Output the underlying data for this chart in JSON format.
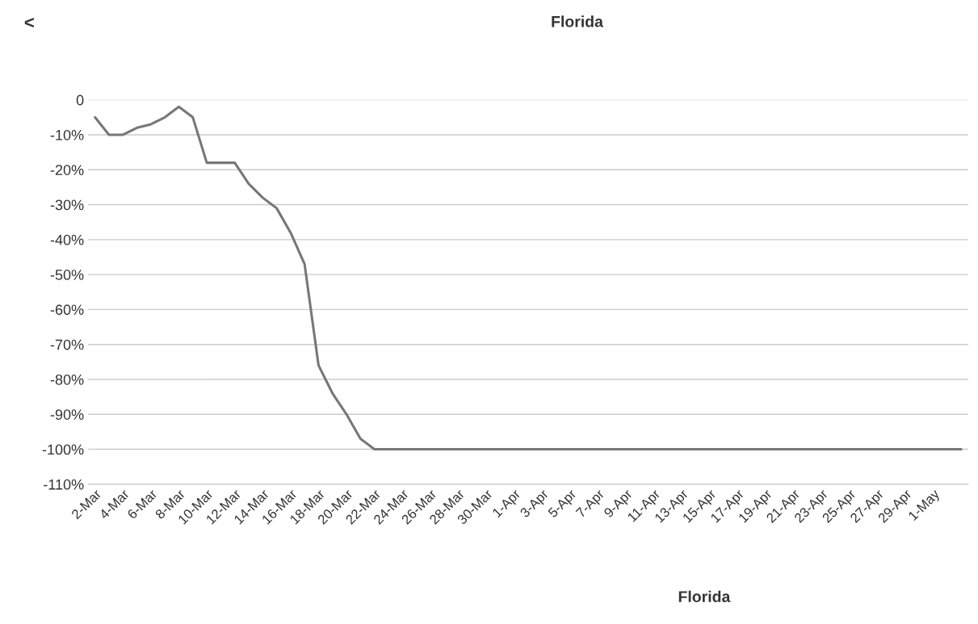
{
  "chart_data": {
    "type": "line",
    "title": "Florida",
    "categories": [
      "2-Mar",
      null,
      "4-Mar",
      null,
      "6-Mar",
      null,
      "8-Mar",
      null,
      "10-Mar",
      null,
      "12-Mar",
      null,
      "14-Mar",
      null,
      "16-Mar",
      null,
      "18-Mar",
      null,
      "20-Mar",
      null,
      "22-Mar",
      null,
      "24-Mar",
      null,
      "26-Mar",
      null,
      "28-Mar",
      null,
      "30-Mar",
      null,
      "1-Apr",
      null,
      "3-Apr",
      null,
      "5-Apr",
      null,
      "7-Apr",
      null,
      "9-Apr",
      null,
      "11-Apr",
      null,
      "13-Apr",
      null,
      "15-Apr",
      null,
      "17-Apr",
      null,
      "19-Apr",
      null,
      "21-Apr",
      null,
      "23-Apr",
      null,
      "25-Apr",
      null,
      "27-Apr",
      null,
      "29-Apr",
      null,
      "1-May",
      null,
      null
    ],
    "series": [
      {
        "color": "#777777",
        "values": [
          -5,
          -10,
          -10,
          -8,
          -7,
          -5,
          -2,
          -5,
          -18,
          -18,
          -18,
          -24,
          -28,
          -31,
          -38,
          -47,
          -76,
          -84,
          -90,
          -97,
          -100,
          -100,
          -100,
          -100,
          -100,
          -100,
          -100,
          -100,
          -100,
          -100,
          -100,
          -100,
          -100,
          -100,
          -100,
          -100,
          -100,
          -100,
          -100,
          -100,
          -100,
          -100,
          -100,
          -100,
          -100,
          -100,
          -100,
          -100,
          -100,
          -100,
          -100,
          -100,
          -100,
          -100,
          -100,
          -100,
          -100,
          -100,
          -100,
          -100,
          -100,
          -100,
          -100
        ]
      }
    ],
    "ylim": [
      -110,
      0
    ],
    "yticks": [
      0,
      {
        "value": -10,
        "label": "-10%"
      },
      {
        "value": -20,
        "label": "-20%"
      },
      {
        "value": -30,
        "label": "-30%"
      },
      {
        "value": -40,
        "label": "-40%"
      },
      {
        "value": -50,
        "label": "-50%"
      },
      {
        "value": -60,
        "label": "-60%"
      },
      {
        "value": -70,
        "label": "-70%"
      },
      {
        "value": -80,
        "label": "-80%"
      },
      {
        "value": -90,
        "label": "-90%"
      },
      {
        "value": -100,
        "label": "-100%"
      },
      {
        "value": -110,
        "label": "-110%"
      }
    ],
    "grid": "y",
    "legend": false,
    "marker": "none",
    "line_style": "solid",
    "annotations": [
      "<",
      "Florida"
    ]
  }
}
